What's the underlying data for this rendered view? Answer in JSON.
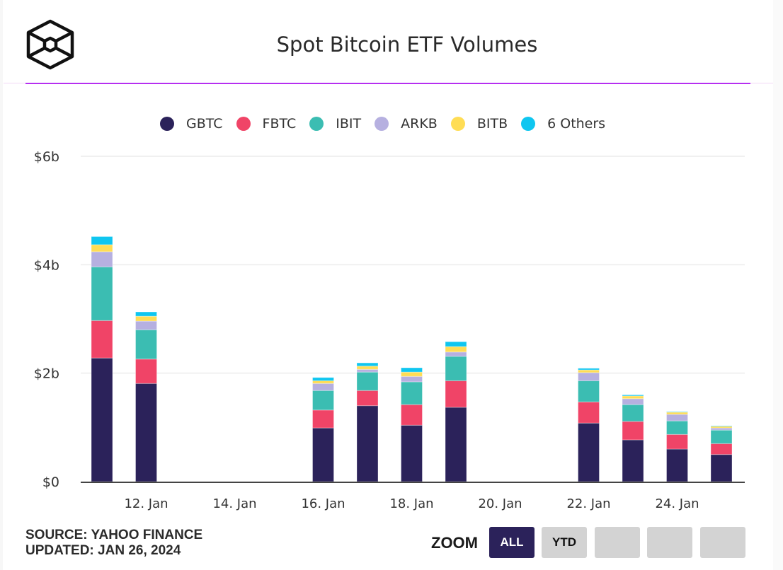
{
  "header": {
    "logo_icon": "hexagonal-cube-logo-icon",
    "title": "Spot Bitcoin ETF Volumes",
    "accent_color": "#b62ff0"
  },
  "footer": {
    "source": "SOURCE: YAHOO FINANCE",
    "updated": "UPDATED: JAN 26, 2024",
    "zoom_label": "ZOOM",
    "zoom_buttons": [
      {
        "label": "ALL",
        "active": true
      },
      {
        "label": "YTD",
        "active": false
      },
      {
        "label": "",
        "active": false
      },
      {
        "label": "",
        "active": false
      },
      {
        "label": "",
        "active": false
      }
    ]
  },
  "chart_data": {
    "type": "bar",
    "stacked": true,
    "title": "Spot Bitcoin ETF Volumes",
    "xlabel": "",
    "ylabel": "",
    "ylim": [
      0,
      6
    ],
    "y_unit": "billion USD",
    "yticks": [
      0,
      2,
      4,
      6
    ],
    "ytick_labels": [
      "$0",
      "$2b",
      "$4b",
      "$6b"
    ],
    "x_axis_days": [
      11,
      26
    ],
    "xticks": [
      12,
      14,
      16,
      18,
      20,
      22,
      24
    ],
    "xtick_labels": [
      "12. Jan",
      "14. Jan",
      "16. Jan",
      "18. Jan",
      "20. Jan",
      "22. Jan",
      "24. Jan"
    ],
    "grid": true,
    "legend_position": "top-center",
    "categories": [
      "11. Jan",
      "12. Jan",
      "16. Jan",
      "17. Jan",
      "18. Jan",
      "19. Jan",
      "22. Jan",
      "23. Jan",
      "24. Jan",
      "25. Jan"
    ],
    "category_days": [
      11,
      12,
      16,
      17,
      18,
      19,
      22,
      23,
      24,
      25
    ],
    "series": [
      {
        "name": "GBTC",
        "color": "#2b225a",
        "values": [
          2.28,
          1.81,
          0.99,
          1.4,
          1.04,
          1.37,
          1.08,
          0.77,
          0.6,
          0.5
        ]
      },
      {
        "name": "FBTC",
        "color": "#f04467",
        "values": [
          0.69,
          0.45,
          0.33,
          0.28,
          0.38,
          0.49,
          0.39,
          0.34,
          0.27,
          0.2
        ]
      },
      {
        "name": "IBIT",
        "color": "#3bbdb2",
        "values": [
          0.99,
          0.54,
          0.36,
          0.34,
          0.42,
          0.45,
          0.39,
          0.31,
          0.25,
          0.25
        ]
      },
      {
        "name": "ARKB",
        "color": "#b6b0e0",
        "values": [
          0.28,
          0.16,
          0.13,
          0.05,
          0.1,
          0.08,
          0.15,
          0.11,
          0.12,
          0.04
        ]
      },
      {
        "name": "BITB",
        "color": "#ffdd55",
        "values": [
          0.13,
          0.09,
          0.05,
          0.06,
          0.08,
          0.1,
          0.05,
          0.05,
          0.04,
          0.03
        ]
      },
      {
        "name": "6 Others",
        "color": "#0fc6f0",
        "values": [
          0.15,
          0.08,
          0.06,
          0.06,
          0.08,
          0.09,
          0.03,
          0.02,
          0.01,
          0.01
        ]
      }
    ]
  }
}
